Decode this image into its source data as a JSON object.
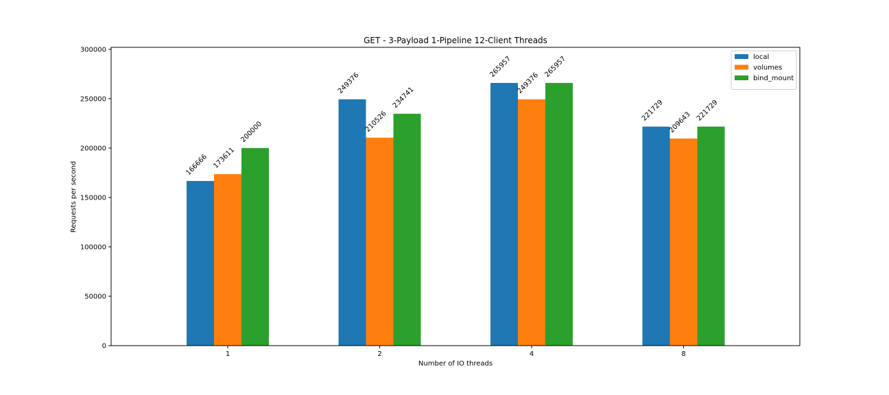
{
  "chart_data": {
    "type": "bar",
    "title": "GET - 3-Payload 1-Pipeline 12-Client Threads",
    "xlabel": "Number of IO threads",
    "ylabel": "Requests per second",
    "categories": [
      "1",
      "2",
      "4",
      "8"
    ],
    "series": [
      {
        "name": "local",
        "color": "#1f77b4",
        "values": [
          166666,
          249376,
          265957,
          221729
        ]
      },
      {
        "name": "volumes",
        "color": "#ff7f0e",
        "values": [
          173611,
          210526,
          249376,
          209643
        ]
      },
      {
        "name": "bind_mount",
        "color": "#2ca02c",
        "values": [
          200000,
          234741,
          265957,
          221729
        ]
      }
    ],
    "ylim": [
      0,
      302000
    ],
    "yticks": [
      0,
      50000,
      100000,
      150000,
      200000,
      250000,
      300000
    ],
    "grid": false,
    "legend_position": "upper right",
    "data_labels": true
  }
}
